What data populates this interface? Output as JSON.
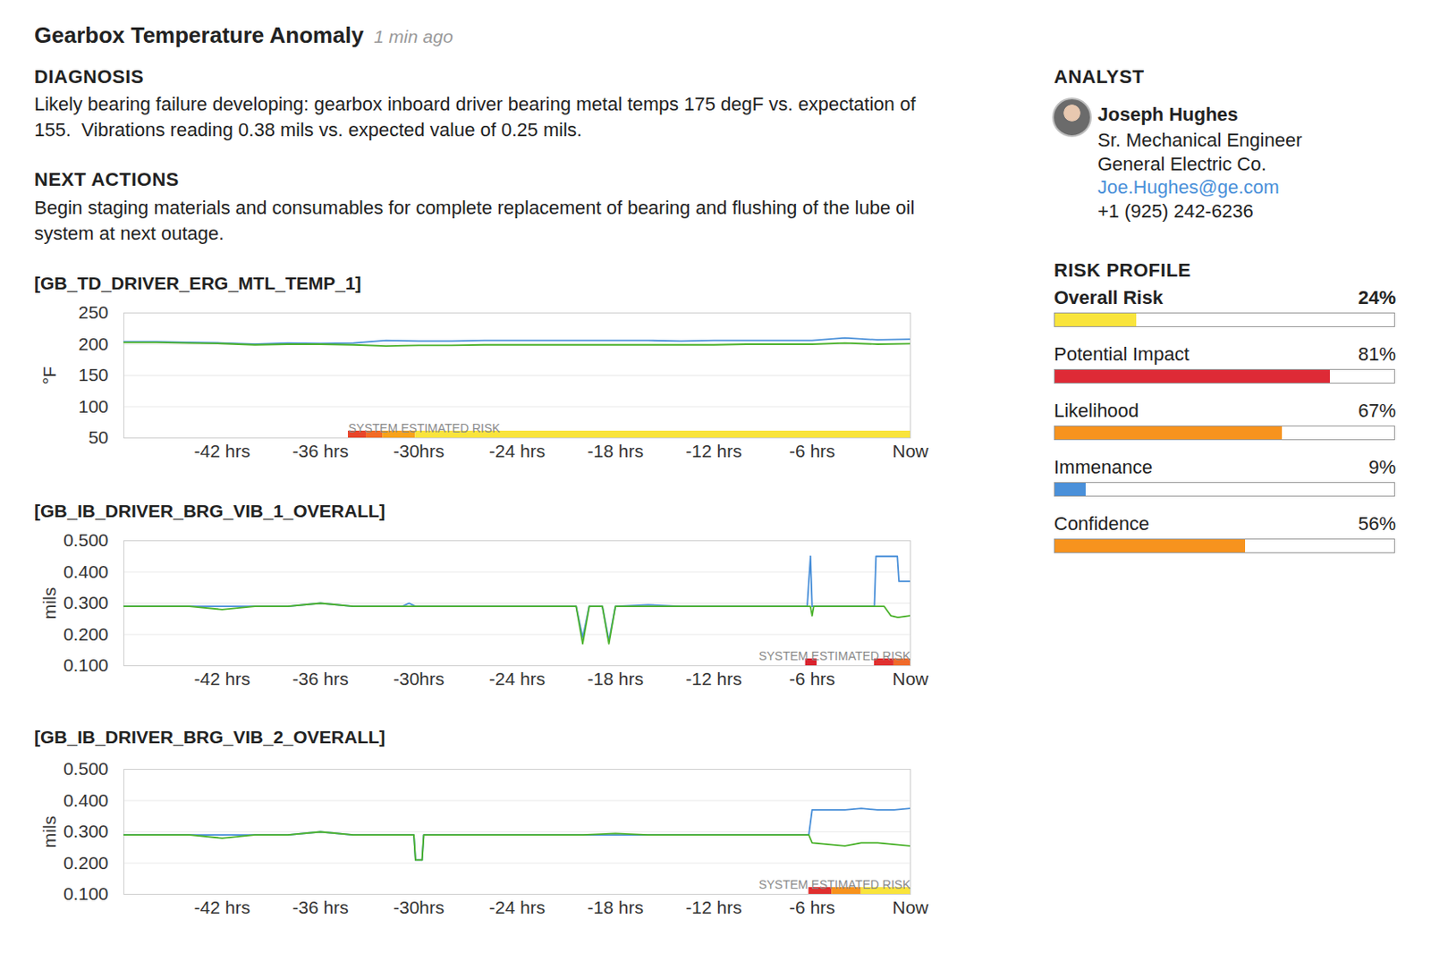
{
  "header": {
    "title": "Gearbox Temperature Anomaly",
    "time": "1 min ago"
  },
  "diagnosis": {
    "heading": "DIAGNOSIS",
    "lines": [
      "Likely bearing failure developing: gearbox inboard driver bearing metal temps 175 degF vs. expectation of",
      "155.  Vibrations reading 0.38 mils vs. expected value of 0.25 mils."
    ]
  },
  "next_actions": {
    "heading": "NEXT ACTIONS",
    "lines": [
      "Begin staging materials and consumables for complete replacement of bearing and flushing of the lube oil",
      "system at next outage."
    ]
  },
  "analyst": {
    "heading": "ANALYST",
    "name": "Joseph Hughes",
    "title": "Sr. Mechanical Engineer",
    "company": "General Electric Co.",
    "email": "Joe.Hughes@ge.com",
    "phone": "+1 (925) 242-6236"
  },
  "risk_profile": {
    "heading": "RISK PROFILE",
    "range": [
      0,
      100
    ],
    "items": [
      {
        "name": "Overall Risk",
        "value": 24,
        "label": "24%",
        "color": "#f9e43c"
      },
      {
        "name": "Potential Impact",
        "value": 81,
        "label": "81%",
        "color": "#de2a36"
      },
      {
        "name": "Likelihood",
        "value": 67,
        "label": "67%",
        "color": "#f7931e"
      },
      {
        "name": "Immenance",
        "value": 9,
        "label": "9%",
        "color": "#4a90d9"
      },
      {
        "name": "Confidence",
        "value": 56,
        "label": "56%",
        "color": "#f7931e"
      }
    ]
  },
  "chart_data": [
    {
      "type": "line",
      "title": "[GB_TD_DRIVER_ERG_MTL_TEMP_1]",
      "y_label": "°F",
      "x": [
        -48,
        -46,
        -44,
        -42,
        -40,
        -38,
        -36,
        -34,
        -32,
        -30,
        -28,
        -26,
        -24,
        -22,
        -20,
        -18,
        -16,
        -14,
        -12,
        -10,
        -8,
        -6,
        -4,
        -2,
        0
      ],
      "series": [
        {
          "color": "#4a90d9",
          "values": [
            204,
            204,
            203,
            202,
            200,
            202,
            201,
            202,
            206,
            205,
            205,
            206,
            206,
            206,
            206,
            206,
            206,
            205,
            206,
            206,
            206,
            206,
            210,
            207,
            208
          ]
        },
        {
          "color": "#4db32e",
          "values": [
            203,
            203,
            202,
            201,
            199,
            200,
            200,
            199,
            197,
            198,
            198,
            199,
            199,
            199,
            199,
            199,
            199,
            199,
            199,
            200,
            200,
            200,
            202,
            200,
            201
          ]
        }
      ],
      "xlim": [
        -48,
        0
      ],
      "xticks": [
        {
          "value": -42,
          "label": "-42 hrs"
        },
        {
          "value": -36,
          "label": "-36 hrs"
        },
        {
          "value": -30,
          "label": "-30hrs"
        },
        {
          "value": -24,
          "label": "-24 hrs"
        },
        {
          "value": -18,
          "label": "-18 hrs"
        },
        {
          "value": -12,
          "label": "-12 hrs"
        },
        {
          "value": -6,
          "label": "-6 hrs"
        },
        {
          "value": 0,
          "label": "Now"
        }
      ],
      "ylim": [
        50,
        250
      ],
      "yticks": [
        50,
        100,
        150,
        200,
        250
      ],
      "grid": true,
      "risk_band": {
        "label": "SYSTEM ESTIMATED RISK",
        "segments": [
          {
            "x0": -34.3,
            "x1": -33.2,
            "color": "#e8452a"
          },
          {
            "x0": -33.2,
            "x1": -32.2,
            "color": "#f26a25"
          },
          {
            "x0": -32.2,
            "x1": -30.2,
            "color": "#f7a21b"
          },
          {
            "x0": -30.2,
            "x1": 0,
            "color": "#f9e43c"
          }
        ]
      }
    },
    {
      "type": "line",
      "title": "[GB_IB_DRIVER_BRG_VIB_1_OVERALL]",
      "y_label": "mils",
      "x": [
        -48,
        -46,
        -44,
        -42,
        -40,
        -38,
        -36,
        -34,
        -32,
        -31,
        -30.6,
        -30.2,
        -28,
        -26,
        -24,
        -22,
        -20.4,
        -20,
        -19.6,
        -19.2,
        -18.8,
        -18.4,
        -18,
        -16,
        -14,
        -12,
        -10,
        -8,
        -6.3,
        -6.1,
        -6,
        -5.9,
        -5.6,
        -4,
        -2.2,
        -2.1,
        -1.6,
        -1.2,
        -0.8,
        -0.7,
        0
      ],
      "series": [
        {
          "color": "#4a90d9",
          "values": [
            0.29,
            0.29,
            0.29,
            0.29,
            0.29,
            0.29,
            0.3,
            0.29,
            0.29,
            0.29,
            0.3,
            0.29,
            0.29,
            0.29,
            0.29,
            0.29,
            0.29,
            0.19,
            0.29,
            0.29,
            0.29,
            0.18,
            0.29,
            0.295,
            0.29,
            0.29,
            0.29,
            0.29,
            0.29,
            0.45,
            0.29,
            0.29,
            0.29,
            0.29,
            0.29,
            0.45,
            0.45,
            0.45,
            0.45,
            0.37,
            0.37
          ]
        },
        {
          "color": "#4db32e",
          "values": [
            0.29,
            0.29,
            0.29,
            0.28,
            0.29,
            0.29,
            0.3,
            0.29,
            0.29,
            0.29,
            0.29,
            0.29,
            0.29,
            0.29,
            0.29,
            0.29,
            0.29,
            0.17,
            0.29,
            0.29,
            0.29,
            0.17,
            0.29,
            0.29,
            0.29,
            0.29,
            0.29,
            0.29,
            0.29,
            0.29,
            0.26,
            0.29,
            0.29,
            0.29,
            0.29,
            0.29,
            0.29,
            0.26,
            0.255,
            0.255,
            0.26
          ]
        }
      ],
      "xlim": [
        -48,
        0
      ],
      "xticks": [
        {
          "value": -42,
          "label": "-42 hrs"
        },
        {
          "value": -36,
          "label": "-36 hrs"
        },
        {
          "value": -30,
          "label": "-30hrs"
        },
        {
          "value": -24,
          "label": "-24 hrs"
        },
        {
          "value": -18,
          "label": "-18 hrs"
        },
        {
          "value": -12,
          "label": "-12 hrs"
        },
        {
          "value": -6,
          "label": "-6 hrs"
        },
        {
          "value": 0,
          "label": "Now"
        }
      ],
      "ylim": [
        0.1,
        0.5
      ],
      "yticks": [
        {
          "value": 0.1,
          "label": "0.100"
        },
        {
          "value": 0.2,
          "label": "0.200"
        },
        {
          "value": 0.3,
          "label": "0.300"
        },
        {
          "value": 0.4,
          "label": "0.400"
        },
        {
          "value": 0.5,
          "label": "0.500"
        }
      ],
      "grid": true,
      "risk_band": {
        "label": "SYSTEM ESTIMATED RISK",
        "segments": [
          {
            "x0": -6.4,
            "x1": -5.7,
            "color": "#d9232e"
          },
          {
            "x0": -2.2,
            "x1": -1,
            "color": "#e0302f"
          },
          {
            "x0": -1,
            "x1": 0,
            "color": "#f06a2a"
          }
        ]
      }
    },
    {
      "type": "line",
      "title": "[GB_IB_DRIVER_BRG_VIB_2_OVERALL]",
      "y_label": "mils",
      "x": [
        -48,
        -46,
        -44,
        -42,
        -40,
        -38,
        -36,
        -34,
        -32,
        -30.3,
        -30.2,
        -29.8,
        -29.7,
        -28,
        -26,
        -24,
        -22,
        -20,
        -18,
        -16,
        -14,
        -12,
        -10,
        -8,
        -6.2,
        -6,
        -5,
        -4,
        -3,
        -2,
        -1,
        0
      ],
      "series": [
        {
          "color": "#4a90d9",
          "values": [
            0.29,
            0.29,
            0.29,
            0.29,
            0.29,
            0.29,
            0.3,
            0.29,
            0.29,
            0.29,
            0.21,
            0.21,
            0.29,
            0.29,
            0.29,
            0.29,
            0.29,
            0.29,
            0.29,
            0.29,
            0.29,
            0.29,
            0.29,
            0.29,
            0.29,
            0.37,
            0.37,
            0.37,
            0.375,
            0.37,
            0.37,
            0.375
          ]
        },
        {
          "color": "#4db32e",
          "values": [
            0.29,
            0.29,
            0.29,
            0.28,
            0.29,
            0.29,
            0.3,
            0.29,
            0.29,
            0.29,
            0.21,
            0.21,
            0.29,
            0.29,
            0.29,
            0.29,
            0.29,
            0.29,
            0.295,
            0.29,
            0.29,
            0.29,
            0.29,
            0.29,
            0.29,
            0.265,
            0.26,
            0.255,
            0.265,
            0.265,
            0.26,
            0.255
          ]
        }
      ],
      "xlim": [
        -48,
        0
      ],
      "xticks": [
        {
          "value": -42,
          "label": "-42 hrs"
        },
        {
          "value": -36,
          "label": "-36 hrs"
        },
        {
          "value": -30,
          "label": "-30hrs"
        },
        {
          "value": -24,
          "label": "-24 hrs"
        },
        {
          "value": -18,
          "label": "-18 hrs"
        },
        {
          "value": -12,
          "label": "-12 hrs"
        },
        {
          "value": -6,
          "label": "-6 hrs"
        },
        {
          "value": 0,
          "label": "Now"
        }
      ],
      "ylim": [
        0.1,
        0.5
      ],
      "yticks": [
        {
          "value": 0.1,
          "label": "0.100"
        },
        {
          "value": 0.2,
          "label": "0.200"
        },
        {
          "value": 0.3,
          "label": "0.300"
        },
        {
          "value": 0.4,
          "label": "0.400"
        },
        {
          "value": 0.5,
          "label": "0.500"
        }
      ],
      "grid": true,
      "risk_band": {
        "label": "SYSTEM ESTIMATED RISK",
        "segments": [
          {
            "x0": -6.2,
            "x1": -4.8,
            "color": "#e0302f"
          },
          {
            "x0": -4.8,
            "x1": -3,
            "color": "#f7931e"
          },
          {
            "x0": -3,
            "x1": 0,
            "color": "#f9e43c"
          }
        ]
      }
    }
  ]
}
